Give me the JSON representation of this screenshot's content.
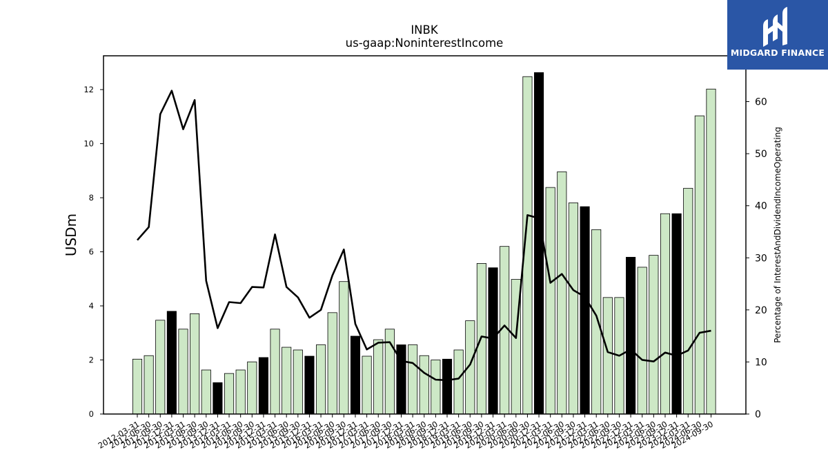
{
  "chart_data": {
    "type": "bar",
    "title": "INBK",
    "subtitle": "us-gaap:NoninterestIncome",
    "ylabel": "USDm",
    "y2label": "Percentage of InterestAndDividendIncomeOperating",
    "ylim": [
      0,
      13.25
    ],
    "y2lim": [
      0,
      68.8
    ],
    "yticks": [
      0,
      2,
      4,
      6,
      8,
      10,
      12
    ],
    "y2ticks": [
      0,
      10,
      20,
      30,
      40,
      50,
      60
    ],
    "grid": false,
    "colors": {
      "bar_light": "#cde8c6",
      "bar_dark": "#000000",
      "line": "#000000"
    },
    "categories": [
      "2012-03-31",
      "2012-06-30",
      "2012-09-30",
      "2012-12-31",
      "2013-03-31",
      "2013-06-30",
      "2013-09-30",
      "2013-12-31",
      "2014-03-31",
      "2014-06-30",
      "2014-09-30",
      "2014-12-31",
      "2015-03-31",
      "2015-06-30",
      "2015-09-30",
      "2015-12-31",
      "2016-03-31",
      "2016-06-30",
      "2016-09-30",
      "2016-12-31",
      "2017-03-31",
      "2017-06-30",
      "2017-09-30",
      "2017-12-31",
      "2018-03-31",
      "2018-06-30",
      "2018-09-30",
      "2018-12-31",
      "2019-03-31",
      "2019-06-30",
      "2019-09-30",
      "2019-12-31",
      "2020-03-31",
      "2020-06-30",
      "2020-09-30",
      "2020-12-31",
      "2021-03-31",
      "2021-06-30",
      "2021-09-30",
      "2021-12-31",
      "2022-03-31",
      "2022-06-30",
      "2022-09-30",
      "2022-12-31",
      "2023-03-31",
      "2023-06-30",
      "2023-09-30",
      "2023-12-31",
      "2024-03-31",
      "2024-06-30",
      "2024-09-30"
    ],
    "tick_labels": [
      "2012-03-31",
      "2012-06-30",
      "2012-09-30",
      "2012-12-31",
      "2013-03-31",
      "2013-06-30",
      "2013-09-30",
      "2013-12-31",
      "2014-03-31",
      "2014-06-30",
      "2014-09-30",
      "2014-12-31",
      "2015-03-31",
      "2015-06-30",
      "2015-09-30",
      "2015-12-31",
      "2016-03-31",
      "2016-06-30",
      "2016-09-30",
      "2016-12-31",
      "2017-03-31",
      "2017-06-30",
      "2017-09-30",
      "2017-12-31",
      "2018-03-31",
      "2018-06-30",
      "2018-09-30",
      "2018-12-31",
      "2019-03-31",
      "2019-06-30",
      "2019-09-30",
      "2019-12-31",
      "2020-03-31",
      "2020-06-30",
      "2020-09-30",
      "2020-12-31",
      "2021-03-31",
      "2021-06-30",
      "2021-09-30",
      "2021-12-31",
      "2022-03-31",
      "2022-06-30",
      "2022-09-30",
      "2022-12-31",
      "2023-03-31",
      "2023-06-30",
      "2023-09-30",
      "2023-12-31",
      "2024-03-31",
      "2024-06-30",
      "2024-09-30"
    ],
    "series": [
      {
        "values": [
          2.03,
          2.16,
          3.47,
          3.8,
          3.14,
          3.71,
          1.63,
          1.16,
          1.5,
          1.63,
          1.93,
          2.09,
          3.14,
          2.47,
          2.37,
          2.14,
          2.56,
          3.75,
          4.9,
          2.88,
          2.14,
          2.75,
          3.14,
          2.56,
          2.56,
          2.16,
          2.0,
          2.03,
          2.37,
          3.45,
          5.57,
          5.41,
          6.2,
          4.98,
          12.48,
          12.63,
          8.38,
          8.96,
          7.81,
          7.67,
          6.82,
          4.31,
          4.31,
          5.8,
          5.43,
          5.87,
          7.41,
          7.41,
          8.35,
          11.03,
          12.02
        ],
        "dark": [
          false,
          false,
          false,
          true,
          false,
          false,
          false,
          true,
          false,
          false,
          false,
          true,
          false,
          false,
          false,
          true,
          false,
          false,
          false,
          true,
          false,
          false,
          false,
          true,
          false,
          false,
          false,
          true,
          false,
          false,
          false,
          true,
          false,
          false,
          false,
          true,
          false,
          false,
          false,
          true,
          false,
          false,
          false,
          true,
          false,
          false,
          false,
          true,
          false,
          false,
          false
        ]
      },
      {
        "axis": "right",
        "values": [
          33.4,
          35.9,
          57.6,
          62.1,
          54.7,
          60.3,
          25.6,
          16.5,
          21.5,
          21.3,
          24.4,
          24.3,
          34.5,
          24.4,
          22.4,
          18.5,
          20.0,
          26.6,
          31.6,
          17.3,
          12.4,
          13.7,
          13.8,
          10.2,
          9.8,
          7.9,
          6.6,
          6.5,
          6.8,
          9.5,
          14.9,
          14.5,
          17.0,
          14.6,
          38.2,
          37.6,
          25.2,
          26.9,
          23.8,
          22.5,
          18.9,
          11.9,
          11.2,
          12.4,
          10.4,
          10.1,
          11.8,
          11.2,
          12.2,
          15.6,
          16.0
        ]
      }
    ]
  },
  "logo": {
    "text": "MIDGARD FINANCE"
  }
}
